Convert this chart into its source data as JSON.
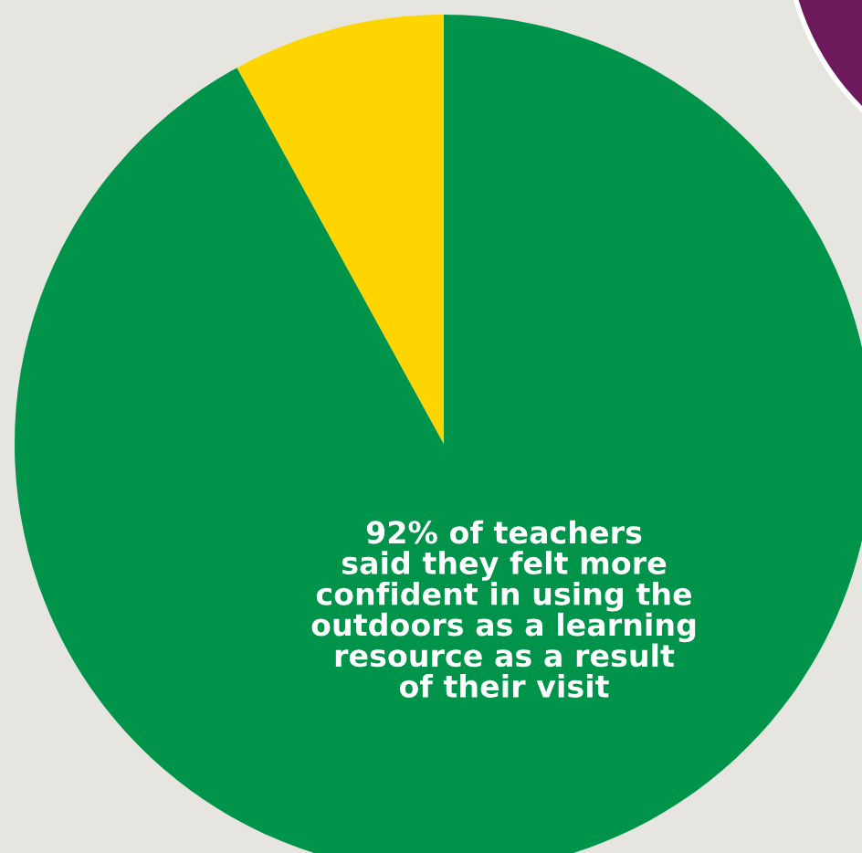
{
  "chart_data": {
    "type": "pie",
    "categories": [
      null,
      null
    ],
    "values": [
      92,
      8
    ],
    "colors": [
      "#00944a",
      "#ffd500"
    ],
    "annotations": [
      "92% of teachers\nsaid they felt more\nconfident in using the\noutdoors as a learning\nresource as a result\nof their visit"
    ]
  }
}
